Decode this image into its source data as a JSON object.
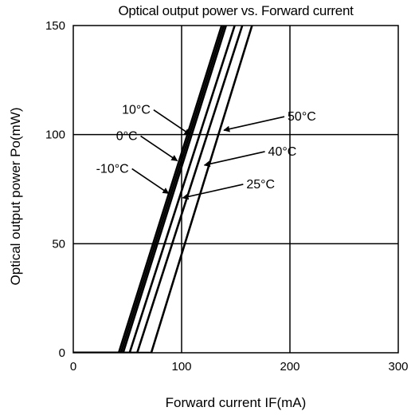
{
  "chart_data": {
    "type": "line",
    "title": "Optical output power vs. Forward current",
    "xlabel": "Forward current IF(mA)",
    "ylabel": "Optical output power Po(mW)",
    "xlim": [
      0,
      300
    ],
    "ylim": [
      0,
      150
    ],
    "x_ticks": [
      "0",
      "100",
      "200",
      "300"
    ],
    "y_ticks": [
      "0",
      "50",
      "100",
      "150"
    ],
    "grid": true,
    "series": [
      {
        "name": "-10°C",
        "x": [
          0,
          42,
          137
        ],
        "y": [
          0,
          0,
          150
        ]
      },
      {
        "name": "0°C",
        "x": [
          0,
          44,
          139
        ],
        "y": [
          0,
          0,
          150
        ]
      },
      {
        "name": "10°C",
        "x": [
          0,
          46,
          141
        ],
        "y": [
          0,
          0,
          150
        ]
      },
      {
        "name": "25°C",
        "x": [
          0,
          72,
          165
        ],
        "y": [
          0,
          0,
          150
        ]
      },
      {
        "name": "40°C",
        "x": [
          0,
          59,
          156
        ],
        "y": [
          0,
          0,
          150
        ]
      },
      {
        "name": "50°C",
        "x": [
          0,
          52,
          149
        ],
        "y": [
          0,
          0,
          150
        ]
      }
    ],
    "annotations": [
      {
        "label": "10°C",
        "target": [
          108,
          100
        ],
        "side": "left"
      },
      {
        "label": "0°C",
        "target": [
          96,
          88
        ],
        "side": "left"
      },
      {
        "label": "-10°C",
        "target": [
          88,
          73
        ],
        "side": "left"
      },
      {
        "label": "50°C",
        "target": [
          139,
          102
        ],
        "side": "right"
      },
      {
        "label": "40°C",
        "target": [
          121,
          86
        ],
        "side": "right"
      },
      {
        "label": "25°C",
        "target": [
          101,
          71
        ],
        "side": "right"
      }
    ]
  }
}
